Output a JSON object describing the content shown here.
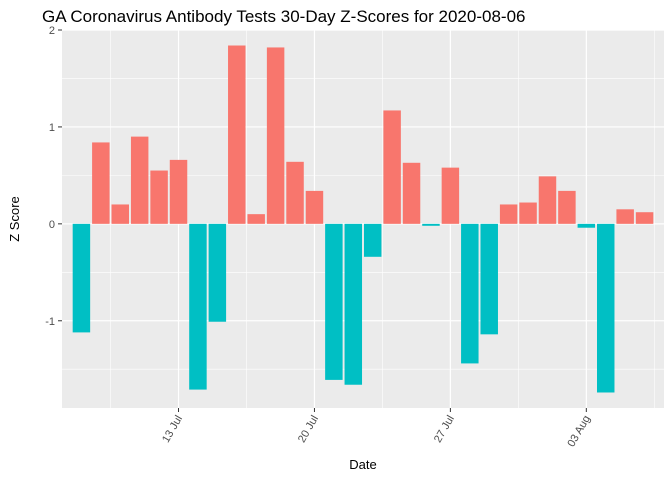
{
  "chart_data": {
    "type": "bar",
    "title": "GA Coronavirus Antibody Tests 30-Day Z-Scores for 2020-08-06",
    "xlabel": "Date",
    "ylabel": "Z Score",
    "x_tick_labels": [
      "13 Jul",
      "20 Jul",
      "27 Jul",
      "03 Aug"
    ],
    "y_tick_labels": [
      "-1",
      "0",
      "1",
      "2"
    ],
    "y_ticks": [
      -1,
      0,
      1,
      2
    ],
    "ylim": [
      -1.9,
      2.0
    ],
    "xlim": [
      "2020-07-07",
      "2020-08-07"
    ],
    "grid": true,
    "legend": "none",
    "colors": {
      "positive": "#F8766D",
      "negative": "#00BFC4",
      "panel": "#EBEBEB",
      "grid": "#FFFFFF"
    },
    "x": [
      "2020-07-08",
      "2020-07-09",
      "2020-07-10",
      "2020-07-11",
      "2020-07-12",
      "2020-07-13",
      "2020-07-14",
      "2020-07-15",
      "2020-07-16",
      "2020-07-17",
      "2020-07-18",
      "2020-07-19",
      "2020-07-20",
      "2020-07-21",
      "2020-07-22",
      "2020-07-23",
      "2020-07-24",
      "2020-07-25",
      "2020-07-26",
      "2020-07-27",
      "2020-07-28",
      "2020-07-29",
      "2020-07-30",
      "2020-07-31",
      "2020-08-01",
      "2020-08-02",
      "2020-08-03",
      "2020-08-04",
      "2020-08-05",
      "2020-08-06"
    ],
    "values": [
      -1.12,
      0.84,
      0.2,
      0.9,
      0.55,
      0.66,
      -1.71,
      -1.01,
      1.84,
      0.1,
      1.82,
      0.64,
      0.34,
      -1.61,
      -1.66,
      -0.34,
      1.17,
      0.63,
      -0.02,
      0.58,
      -1.44,
      -1.14,
      0.2,
      0.22,
      0.49,
      0.34,
      -0.04,
      -1.74,
      0.15,
      0.12
    ]
  }
}
